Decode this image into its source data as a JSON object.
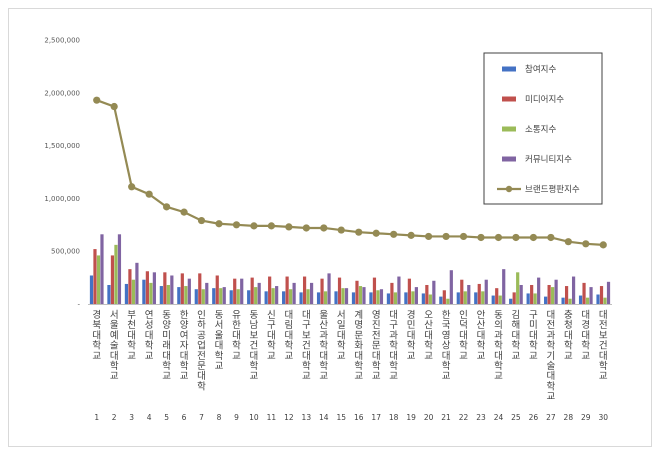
{
  "chart_data": {
    "type": "bar",
    "title": "",
    "xlabel": "",
    "ylabel": "",
    "ylim": [
      0,
      2500000
    ],
    "yticks": [
      "-",
      "500,000",
      "1,000,000",
      "1,500,000",
      "2,000,000",
      "2,500,000"
    ],
    "ytick_values": [
      0,
      500000,
      1000000,
      1500000,
      2000000,
      2500000
    ],
    "grid": false,
    "legend_position": "right",
    "ranks": [
      "1",
      "2",
      "3",
      "4",
      "5",
      "6",
      "7",
      "8",
      "9",
      "10",
      "11",
      "12",
      "13",
      "14",
      "15",
      "16",
      "17",
      "18",
      "19",
      "20",
      "21",
      "22",
      "23",
      "24",
      "25",
      "26",
      "27",
      "28",
      "29",
      "30"
    ],
    "categories": [
      "경북대학교",
      "서울예술대학교",
      "부천대학교",
      "연성대학교",
      "동양미래대학교",
      "한양여자대학교",
      "인하공업전문대학",
      "동서울대학교",
      "유한대학교",
      "동남보건대학교",
      "신구대학교",
      "대림대학교",
      "대구보건대학교",
      "울산과학대학교",
      "서일대학교",
      "계명문화대학교",
      "영진전문대학교",
      "대구과학대학교",
      "경민대학교",
      "오산대학교",
      "한국영상대학교",
      "인덕대학교",
      "안산대학교",
      "동의과학대학교",
      "김해대학교",
      "구미대학교",
      "대전과학기술대학교",
      "충청대학교",
      "대경대학교",
      "대전보건대학교"
    ],
    "series": [
      {
        "name": "참여지수",
        "color": "#4472c4",
        "chart": "bar",
        "values": [
          270000,
          180000,
          190000,
          230000,
          170000,
          160000,
          140000,
          150000,
          130000,
          130000,
          120000,
          120000,
          110000,
          110000,
          120000,
          110000,
          110000,
          100000,
          110000,
          100000,
          70000,
          110000,
          110000,
          80000,
          50000,
          100000,
          70000,
          60000,
          80000,
          90000
        ]
      },
      {
        "name": "미디어지수",
        "color": "#c0504d",
        "chart": "bar",
        "values": [
          520000,
          460000,
          330000,
          310000,
          300000,
          290000,
          290000,
          270000,
          240000,
          250000,
          260000,
          260000,
          260000,
          240000,
          250000,
          220000,
          250000,
          200000,
          240000,
          180000,
          130000,
          230000,
          190000,
          150000,
          110000,
          180000,
          180000,
          170000,
          200000,
          170000
        ]
      },
      {
        "name": "소통지수",
        "color": "#9bbb59",
        "chart": "bar",
        "values": [
          460000,
          560000,
          230000,
          200000,
          180000,
          170000,
          140000,
          150000,
          140000,
          160000,
          150000,
          140000,
          140000,
          120000,
          150000,
          170000,
          130000,
          110000,
          120000,
          90000,
          50000,
          120000,
          120000,
          80000,
          300000,
          100000,
          160000,
          50000,
          60000,
          60000
        ]
      },
      {
        "name": "커뮤니티지수",
        "color": "#8064a2",
        "chart": "bar",
        "values": [
          660000,
          660000,
          390000,
          300000,
          270000,
          240000,
          200000,
          160000,
          240000,
          200000,
          170000,
          200000,
          200000,
          290000,
          150000,
          160000,
          140000,
          260000,
          160000,
          220000,
          320000,
          180000,
          230000,
          330000,
          180000,
          250000,
          230000,
          260000,
          160000,
          210000
        ]
      },
      {
        "name": "브랜드평판지수",
        "color": "#948a54",
        "chart": "line",
        "values": [
          1930000,
          1870000,
          1110000,
          1040000,
          920000,
          870000,
          790000,
          760000,
          750000,
          740000,
          740000,
          730000,
          720000,
          720000,
          700000,
          680000,
          670000,
          660000,
          650000,
          640000,
          640000,
          640000,
          630000,
          630000,
          630000,
          630000,
          630000,
          590000,
          570000,
          560000
        ]
      }
    ]
  }
}
